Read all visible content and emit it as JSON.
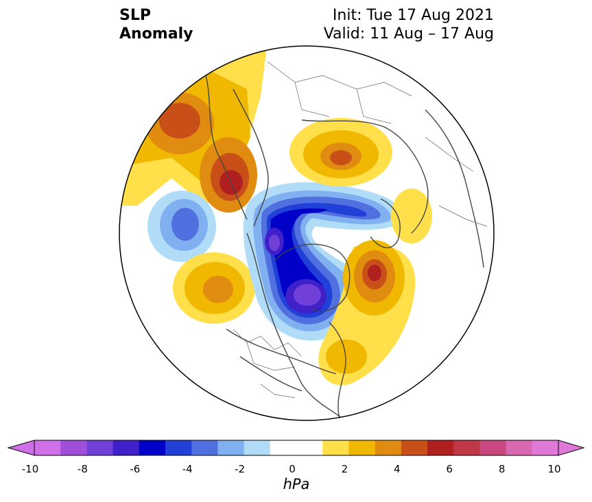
{
  "title": {
    "left_line1": "SLP",
    "left_line2": "Anomaly",
    "right_line1": "Init: Tue 17 Aug 2021",
    "right_line2": "Valid: 11 Aug – 17 Aug"
  },
  "colorbar": {
    "unit": "hPa",
    "ticks": [
      "-10",
      "-8",
      "-6",
      "-4",
      "-2",
      "0",
      "2",
      "4",
      "6",
      "8",
      "10"
    ],
    "levels": [
      -10,
      -9,
      -8,
      -7,
      -6,
      -5,
      -4,
      -3,
      -2,
      -1,
      1,
      2,
      3,
      4,
      5,
      6,
      7,
      8,
      9,
      10
    ],
    "colors": [
      "#d070e8",
      "#a050d8",
      "#7040d8",
      "#4020c8",
      "#0000c8",
      "#2040d8",
      "#5070e0",
      "#80b0f0",
      "#b0dcf8",
      "#ffffff",
      "#ffe04a",
      "#f0b800",
      "#e08c10",
      "#c85018",
      "#b02020",
      "#c03848",
      "#c84880",
      "#d868b0",
      "#e078d8"
    ],
    "extend_low_color": "#d070e8",
    "extend_high_color": "#e078d8"
  },
  "map": {
    "projection": "north-polar-stereographic",
    "variable": "sea-level-pressure-anomaly",
    "features": [
      {
        "type": "positive",
        "peak_hPa": 5,
        "region": "northeast-siberia"
      },
      {
        "type": "positive",
        "peak_hPa": 6,
        "region": "east-siberia"
      },
      {
        "type": "negative",
        "peak_hPa": -4,
        "region": "north-pacific"
      },
      {
        "type": "positive",
        "peak_hPa": 4,
        "region": "gulf-of-alaska"
      },
      {
        "type": "negative",
        "peak_hPa": -7,
        "region": "arctic-ocean"
      },
      {
        "type": "negative",
        "peak_hPa": -8,
        "region": "hudson-bay"
      },
      {
        "type": "positive",
        "peak_hPa": 4,
        "region": "central-russia"
      },
      {
        "type": "positive",
        "peak_hPa": 6,
        "region": "north-atlantic"
      },
      {
        "type": "positive",
        "peak_hPa": 2,
        "region": "scandinavia"
      },
      {
        "type": "positive",
        "peak_hPa": 3,
        "region": "eastern-us"
      }
    ]
  }
}
